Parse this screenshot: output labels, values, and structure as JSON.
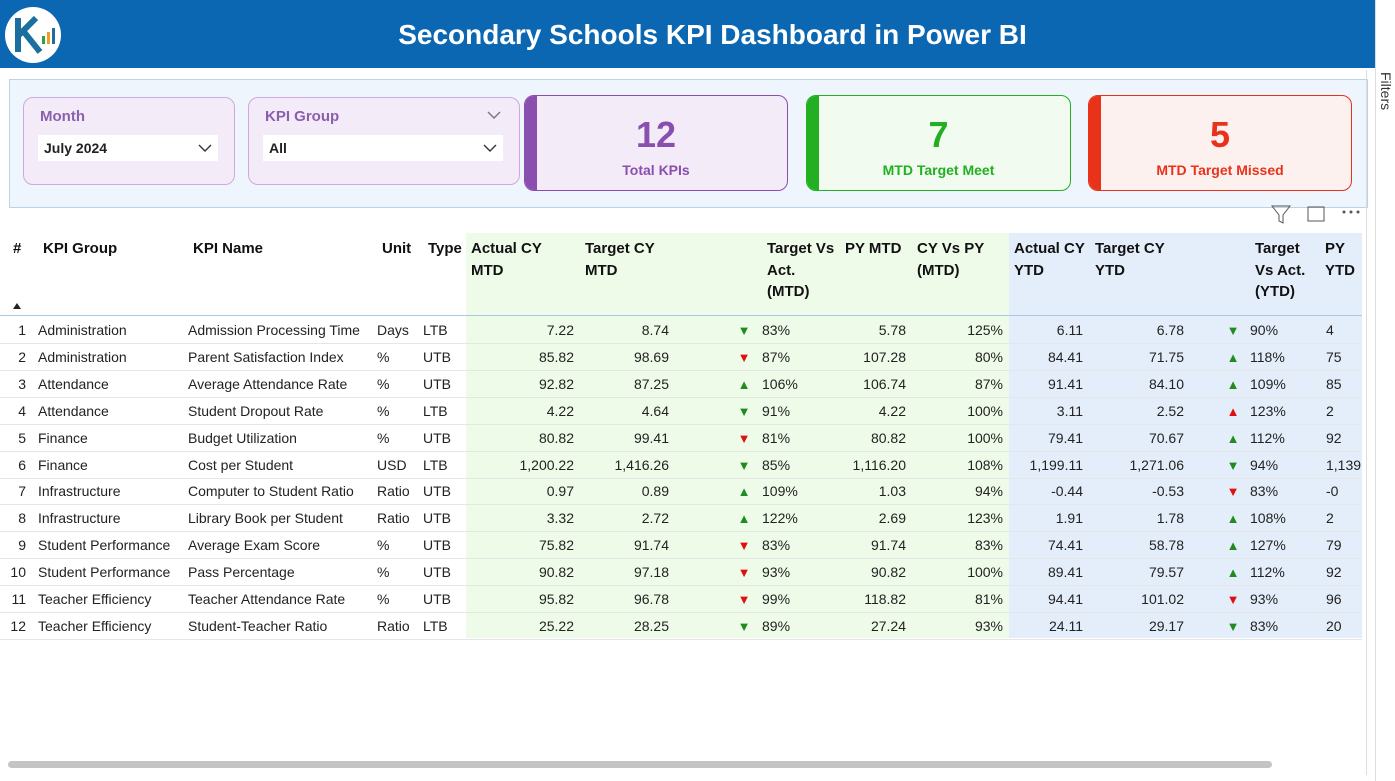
{
  "header": {
    "title": "Secondary Schools KPI Dashboard in Power BI"
  },
  "slicers": [
    {
      "label": "Month",
      "value": "July 2024"
    },
    {
      "label": "KPI Group",
      "value": "All"
    }
  ],
  "cards": [
    {
      "value": 12,
      "label": "Total KPIs",
      "color": "#8a4fae"
    },
    {
      "value": 7,
      "label": "MTD Target Meet",
      "color": "#22b022"
    },
    {
      "value": 5,
      "label": "MTD Target Missed",
      "color": "#e8321a"
    }
  ],
  "filters_pane": {
    "label": "Filters"
  },
  "table": {
    "columns": [
      "#",
      "KPI Group",
      "KPI Name",
      "Unit",
      "Type",
      "Actual CY MTD",
      "Target CY MTD",
      "Target Vs Act. (MTD)",
      "PY MTD",
      "CY Vs PY (MTD)",
      "Actual CY YTD",
      "Target CY YTD",
      "Target Vs Act. (YTD)",
      "PY YTD"
    ],
    "rows": [
      [
        "1",
        "Administration",
        "Admission Processing Time",
        "Days",
        "LTB",
        "7.22",
        "8.74",
        "▼",
        "83%",
        "5.78",
        "125%",
        "6.11",
        "6.78",
        "▼",
        "90%",
        "4"
      ],
      [
        "2",
        "Administration",
        "Parent Satisfaction Index",
        "%",
        "UTB",
        "85.82",
        "98.69",
        "▼",
        "87%",
        "107.28",
        "80%",
        "84.41",
        "71.75",
        "▲",
        "118%",
        "75"
      ],
      [
        "3",
        "Attendance",
        "Average Attendance Rate",
        "%",
        "UTB",
        "92.82",
        "87.25",
        "▲",
        "106%",
        "106.74",
        "87%",
        "91.41",
        "84.10",
        "▲",
        "109%",
        "85"
      ],
      [
        "4",
        "Attendance",
        "Student Dropout Rate",
        "%",
        "LTB",
        "4.22",
        "4.64",
        "▼",
        "91%",
        "4.22",
        "100%",
        "3.11",
        "2.52",
        "▲",
        "123%",
        "2"
      ],
      [
        "5",
        "Finance",
        "Budget Utilization",
        "%",
        "UTB",
        "80.82",
        "99.41",
        "▼",
        "81%",
        "80.82",
        "100%",
        "79.41",
        "70.67",
        "▲",
        "112%",
        "92"
      ],
      [
        "6",
        "Finance",
        "Cost per Student",
        "USD",
        "LTB",
        "1,200.22",
        "1,416.26",
        "▼",
        "85%",
        "1,116.20",
        "108%",
        "1,199.11",
        "1,271.06",
        "▼",
        "94%",
        "1,139"
      ],
      [
        "7",
        "Infrastructure",
        "Computer to Student Ratio",
        "Ratio",
        "UTB",
        "0.97",
        "0.89",
        "▲",
        "109%",
        "1.03",
        "94%",
        "-0.44",
        "-0.53",
        "▼",
        "83%",
        "-0"
      ],
      [
        "8",
        "Infrastructure",
        "Library Book per Student",
        "Ratio",
        "UTB",
        "3.32",
        "2.72",
        "▲",
        "122%",
        "2.69",
        "123%",
        "1.91",
        "1.78",
        "▲",
        "108%",
        "2"
      ],
      [
        "9",
        "Student Performance",
        "Average Exam Score",
        "%",
        "UTB",
        "75.82",
        "91.74",
        "▼",
        "83%",
        "91.74",
        "83%",
        "74.41",
        "58.78",
        "▲",
        "127%",
        "79"
      ],
      [
        "10",
        "Student Performance",
        "Pass Percentage",
        "%",
        "UTB",
        "90.82",
        "97.18",
        "▼",
        "93%",
        "90.82",
        "100%",
        "89.41",
        "79.57",
        "▲",
        "112%",
        "92"
      ],
      [
        "11",
        "Teacher Efficiency",
        "Teacher Attendance Rate",
        "%",
        "UTB",
        "95.82",
        "96.78",
        "▼",
        "99%",
        "118.82",
        "81%",
        "94.41",
        "101.02",
        "▼",
        "93%",
        "96"
      ],
      [
        "12",
        "Teacher Efficiency",
        "Student-Teacher Ratio",
        "Ratio",
        "LTB",
        "25.22",
        "28.25",
        "▼",
        "89%",
        "27.24",
        "93%",
        "24.11",
        "29.17",
        "▼",
        "83%",
        "20"
      ]
    ],
    "arrow_colors": [
      [
        "#1e8c1e",
        "#1e8c1e"
      ],
      [
        "#e01010",
        "#1e8c1e"
      ],
      [
        "#1e8c1e",
        "#1e8c1e"
      ],
      [
        "#1e8c1e",
        "#e01010"
      ],
      [
        "#e01010",
        "#1e8c1e"
      ],
      [
        "#1e8c1e",
        "#1e8c1e"
      ],
      [
        "#1e8c1e",
        "#e01010"
      ],
      [
        "#1e8c1e",
        "#1e8c1e"
      ],
      [
        "#e01010",
        "#1e8c1e"
      ],
      [
        "#e01010",
        "#1e8c1e"
      ],
      [
        "#e01010",
        "#e01010"
      ],
      [
        "#1e8c1e",
        "#1e8c1e"
      ]
    ]
  }
}
